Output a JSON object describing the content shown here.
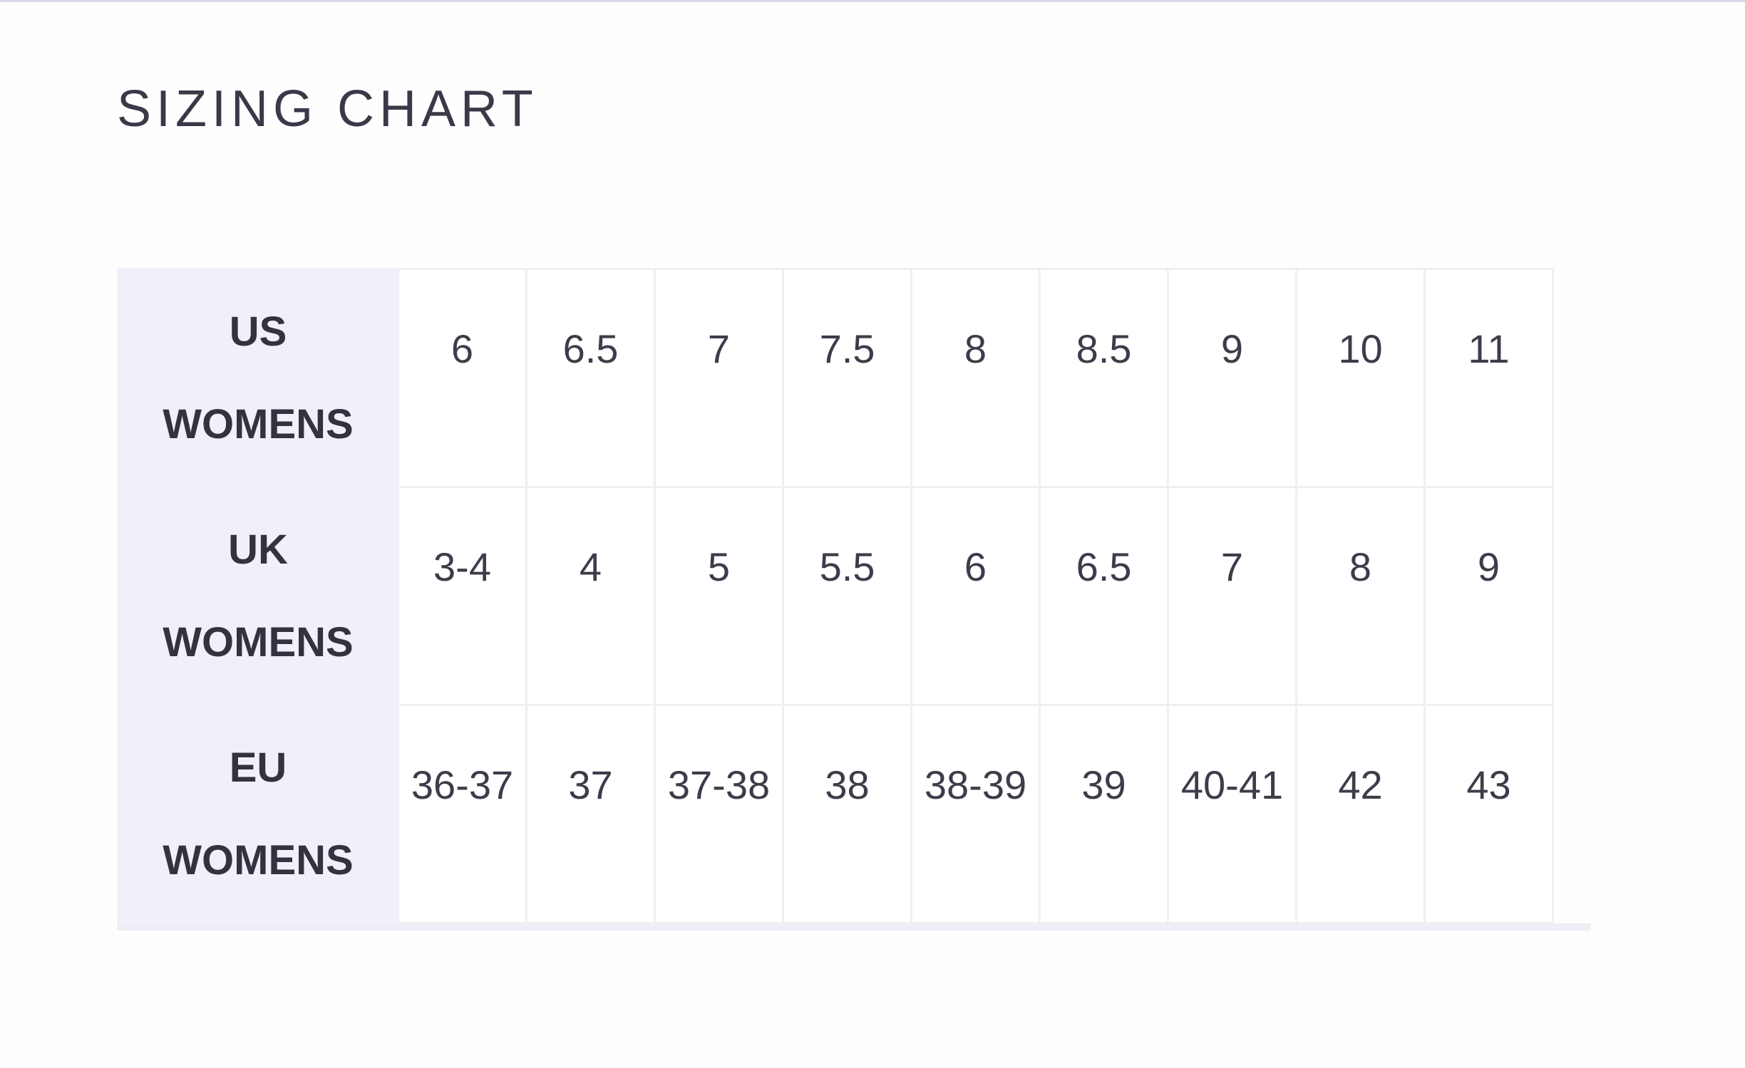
{
  "title": "SIZING CHART",
  "rows": [
    {
      "label_top": "US",
      "label_bottom": "WOMENS",
      "values": [
        "6",
        "6.5",
        "7",
        "7.5",
        "8",
        "8.5",
        "9",
        "10",
        "11"
      ]
    },
    {
      "label_top": "UK",
      "label_bottom": "WOMENS",
      "values": [
        "3-4",
        "4",
        "5",
        "5.5",
        "6",
        "6.5",
        "7",
        "8",
        "9"
      ]
    },
    {
      "label_top": "EU",
      "label_bottom": "WOMENS",
      "values": [
        "36-37",
        "37",
        "37-38",
        "38",
        "38-39",
        "39",
        "40-41",
        "42",
        "43"
      ]
    }
  ],
  "colors": {
    "header_bg": "#f1f0fa",
    "text": "#3b3948",
    "border": "#efeff5"
  }
}
